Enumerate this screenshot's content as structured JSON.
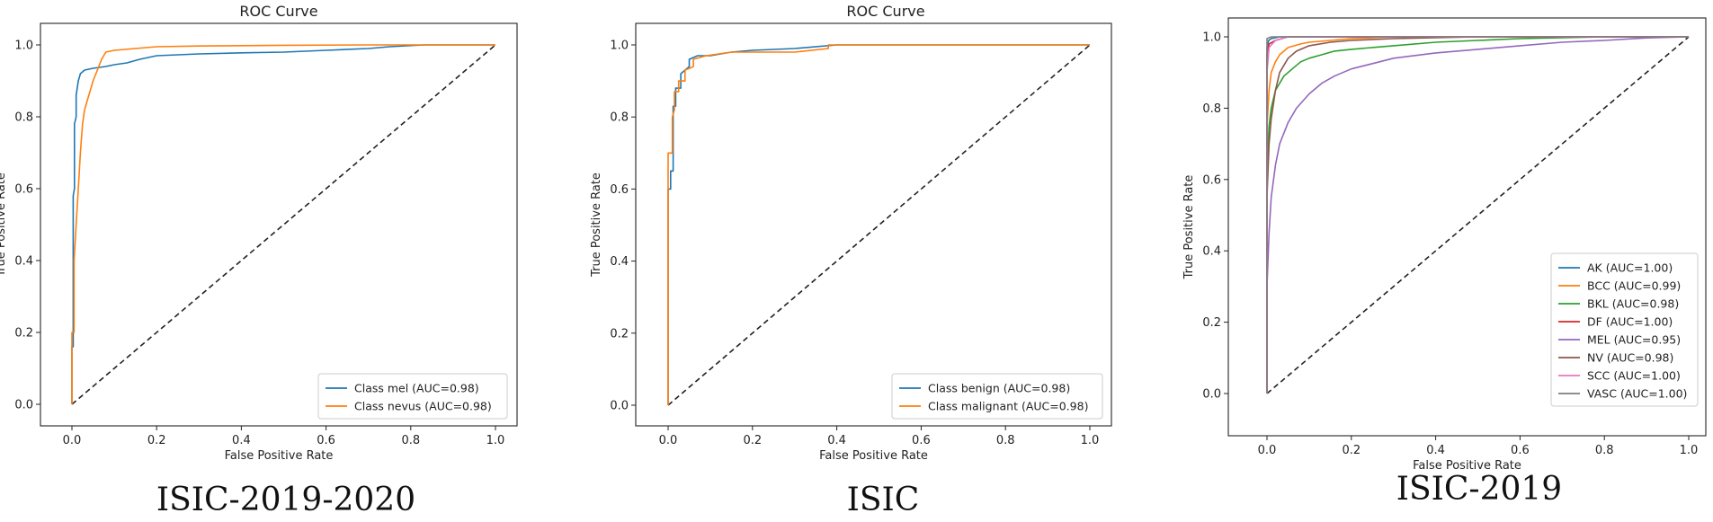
{
  "chart_data": [
    {
      "type": "line",
      "title": "ROC Curve",
      "caption": "ISIC-2019-2020",
      "xlabel": "False Positive Rate",
      "ylabel": "True Positive Rate",
      "xlim": [
        0,
        1
      ],
      "ylim": [
        0,
        1
      ],
      "xticks": [
        "0.0",
        "0.2",
        "0.4",
        "0.6",
        "0.8",
        "1.0"
      ],
      "yticks": [
        "0.0",
        "0.2",
        "0.4",
        "0.6",
        "0.8",
        "1.0"
      ],
      "legend_position": "lower-right",
      "diagonal": true,
      "series": [
        {
          "name": "Class mel (AUC=0.98)",
          "color": "#1f77b4",
          "x": [
            0,
            0,
            0.003,
            0.003,
            0.006,
            0.006,
            0.01,
            0.01,
            0.015,
            0.02,
            0.03,
            0.05,
            0.08,
            0.1,
            0.13,
            0.16,
            0.2,
            0.3,
            0.4,
            0.5,
            0.6,
            0.7,
            0.75,
            0.83,
            1.0
          ],
          "y": [
            0,
            0.16,
            0.16,
            0.58,
            0.6,
            0.78,
            0.8,
            0.86,
            0.9,
            0.92,
            0.93,
            0.935,
            0.94,
            0.945,
            0.95,
            0.96,
            0.97,
            0.975,
            0.978,
            0.98,
            0.985,
            0.99,
            0.995,
            1.0,
            1.0
          ]
        },
        {
          "name": "Class nevus (AUC=0.98)",
          "color": "#ff7f0e",
          "x": [
            0,
            0,
            0.005,
            0.005,
            0.01,
            0.015,
            0.02,
            0.025,
            0.03,
            0.04,
            0.05,
            0.06,
            0.07,
            0.08,
            0.1,
            0.15,
            0.2,
            0.3,
            0.5,
            0.7,
            1.0
          ],
          "y": [
            0,
            0.2,
            0.2,
            0.4,
            0.5,
            0.6,
            0.7,
            0.78,
            0.82,
            0.86,
            0.9,
            0.93,
            0.96,
            0.98,
            0.985,
            0.99,
            0.995,
            0.997,
            0.999,
            1.0,
            1.0
          ]
        }
      ]
    },
    {
      "type": "line",
      "title": "ROC Curve",
      "caption": "ISIC",
      "xlabel": "False Positive Rate",
      "ylabel": "True Positive Rate",
      "xlim": [
        0,
        1
      ],
      "ylim": [
        0,
        1
      ],
      "xticks": [
        "0.0",
        "0.2",
        "0.4",
        "0.6",
        "0.8",
        "1.0"
      ],
      "yticks": [
        "0.0",
        "0.2",
        "0.4",
        "0.6",
        "0.8",
        "1.0"
      ],
      "legend_position": "lower-right",
      "diagonal": true,
      "series": [
        {
          "name": "Class benign (AUC=0.98)",
          "color": "#1f77b4",
          "x": [
            0,
            0,
            0.006,
            0.006,
            0.012,
            0.012,
            0.018,
            0.018,
            0.03,
            0.03,
            0.05,
            0.05,
            0.07,
            0.1,
            0.15,
            0.2,
            0.3,
            0.4,
            1.0
          ],
          "y": [
            0,
            0.6,
            0.6,
            0.65,
            0.65,
            0.83,
            0.83,
            0.88,
            0.88,
            0.92,
            0.94,
            0.96,
            0.97,
            0.97,
            0.98,
            0.985,
            0.99,
            1.0,
            1.0
          ]
        },
        {
          "name": "Class malignant (AUC=0.98)",
          "color": "#ff7f0e",
          "x": [
            0,
            0,
            0.01,
            0.01,
            0.015,
            0.015,
            0.025,
            0.025,
            0.04,
            0.04,
            0.06,
            0.06,
            0.09,
            0.12,
            0.15,
            0.3,
            0.38,
            0.38,
            1.0
          ],
          "y": [
            0,
            0.7,
            0.7,
            0.8,
            0.82,
            0.87,
            0.87,
            0.9,
            0.9,
            0.93,
            0.94,
            0.96,
            0.97,
            0.975,
            0.98,
            0.98,
            0.99,
            1.0,
            1.0
          ]
        }
      ]
    },
    {
      "type": "line",
      "title": "",
      "caption": "ISIC-2019",
      "xlabel": "False Positive Rate",
      "ylabel": "True Positive Rate",
      "xlim": [
        0,
        1
      ],
      "ylim": [
        0,
        1
      ],
      "xticks": [
        "0.0",
        "0.2",
        "0.4",
        "0.6",
        "0.8",
        "1.0"
      ],
      "yticks": [
        "0.0",
        "0.2",
        "0.4",
        "0.6",
        "0.8",
        "1.0"
      ],
      "legend_position": "lower-right",
      "diagonal": true,
      "series": [
        {
          "name": "AK (AUC=1.00)",
          "color": "#1f77b4",
          "x": [
            0,
            0,
            0.004,
            0.01,
            0.03,
            1.0
          ],
          "y": [
            0,
            0.97,
            0.99,
            0.995,
            1.0,
            1.0
          ]
        },
        {
          "name": "BCC (AUC=0.99)",
          "color": "#ff7f0e",
          "x": [
            0,
            0,
            0.005,
            0.01,
            0.02,
            0.03,
            0.05,
            0.08,
            0.1,
            0.15,
            0.2,
            0.3,
            1.0
          ],
          "y": [
            0,
            0.75,
            0.85,
            0.9,
            0.93,
            0.95,
            0.97,
            0.98,
            0.985,
            0.99,
            0.995,
            1.0,
            1.0
          ]
        },
        {
          "name": "BKL (AUC=0.98)",
          "color": "#2ca02c",
          "x": [
            0,
            0,
            0.005,
            0.01,
            0.02,
            0.04,
            0.06,
            0.08,
            0.1,
            0.13,
            0.16,
            0.2,
            0.3,
            0.4,
            0.5,
            0.6,
            0.8,
            1.0
          ],
          "y": [
            0,
            0.6,
            0.75,
            0.8,
            0.85,
            0.89,
            0.91,
            0.93,
            0.94,
            0.95,
            0.96,
            0.965,
            0.975,
            0.985,
            0.99,
            0.995,
            1.0,
            1.0
          ]
        },
        {
          "name": "DF (AUC=1.00)",
          "color": "#d62728",
          "x": [
            0,
            0,
            0.005,
            0.02,
            0.05,
            1.0
          ],
          "y": [
            0,
            0.95,
            0.98,
            0.99,
            1.0,
            1.0
          ]
        },
        {
          "name": "MEL (AUC=0.95)",
          "color": "#9467bd",
          "x": [
            0,
            0,
            0.005,
            0.01,
            0.02,
            0.03,
            0.05,
            0.07,
            0.1,
            0.13,
            0.16,
            0.2,
            0.25,
            0.3,
            0.4,
            0.5,
            0.6,
            0.7,
            0.8,
            0.9,
            1.0
          ],
          "y": [
            0,
            0.3,
            0.45,
            0.55,
            0.64,
            0.7,
            0.76,
            0.8,
            0.84,
            0.87,
            0.89,
            0.91,
            0.925,
            0.94,
            0.955,
            0.965,
            0.975,
            0.985,
            0.99,
            0.997,
            1.0
          ]
        },
        {
          "name": "NV (AUC=0.98)",
          "color": "#8c564b",
          "x": [
            0,
            0,
            0.005,
            0.01,
            0.02,
            0.03,
            0.05,
            0.07,
            0.1,
            0.15,
            0.2,
            0.3,
            0.5,
            1.0
          ],
          "y": [
            0,
            0.55,
            0.7,
            0.77,
            0.85,
            0.9,
            0.94,
            0.96,
            0.975,
            0.985,
            0.99,
            0.995,
            1.0,
            1.0
          ]
        },
        {
          "name": "SCC (AUC=1.00)",
          "color": "#e377c2",
          "x": [
            0,
            0,
            0.005,
            0.02,
            0.05,
            1.0
          ],
          "y": [
            0,
            0.9,
            0.97,
            0.99,
            1.0,
            1.0
          ]
        },
        {
          "name": "VASC (AUC=1.00)",
          "color": "#7f7f7f",
          "x": [
            0,
            0,
            0.01,
            1.0
          ],
          "y": [
            0,
            0.995,
            1.0,
            1.0
          ]
        }
      ]
    }
  ]
}
